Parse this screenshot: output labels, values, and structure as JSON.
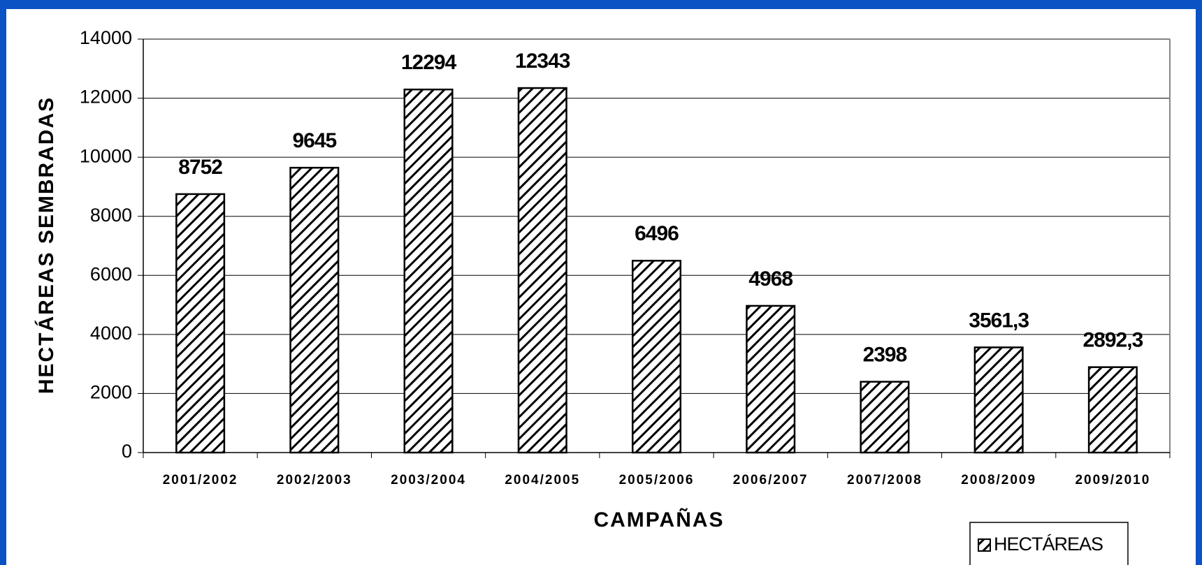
{
  "chart_data": {
    "type": "bar",
    "categories": [
      "2001/2002",
      "2002/2003",
      "2003/2004",
      "2004/2005",
      "2005/2006",
      "2006/2007",
      "2007/2008",
      "2008/2009",
      "2009/2010"
    ],
    "series": [
      {
        "name": "HECTÁREAS",
        "color": "#000000",
        "values": [
          8752,
          9645,
          12294,
          12343,
          6496,
          4968,
          2398,
          3561.3,
          2892.3
        ],
        "value_labels": [
          "8752",
          "9645",
          "12294",
          "12343",
          "6496",
          "4968",
          "2398",
          "3561,3",
          "2892,3"
        ]
      }
    ],
    "xlabel": "CAMPAÑAS",
    "ylabel": "HECTÁREAS SEMBRADAS",
    "ylim": [
      0,
      14000
    ],
    "yticks": [
      0,
      2000,
      4000,
      6000,
      8000,
      10000,
      12000,
      14000
    ],
    "grid": true,
    "legend": "bottom-right"
  }
}
